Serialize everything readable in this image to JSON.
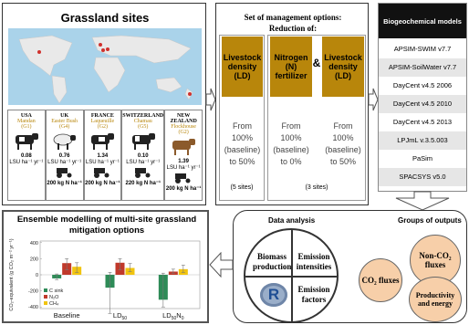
{
  "grassland": {
    "title": "Grassland sites",
    "sites": [
      {
        "country": "USA",
        "site": "Mandan",
        "group": "(G1)",
        "livestock": "0.08",
        "lsu_unit": "LSU ha⁻¹ yr⁻¹",
        "fertilizer": ""
      },
      {
        "country": "UK",
        "site": "Easter Bush",
        "group": "(G4)",
        "livestock": "0.76",
        "lsu_unit": "LSU ha⁻¹ yr⁻¹",
        "fertilizer": "200 kg N ha⁻¹"
      },
      {
        "country": "FRANCE",
        "site": "Laqueuille",
        "group": "(G2)",
        "livestock": "1.34",
        "lsu_unit": "LSU ha⁻¹ yr⁻¹",
        "fertilizer": "200 kg N ha⁻¹"
      },
      {
        "country": "SWITZERLAND",
        "site": "Chamau",
        "group": "(G5)",
        "livestock": "0.10",
        "lsu_unit": "LSU ha⁻¹ yr⁻¹",
        "fertilizer": "220 kg N ha⁻¹"
      },
      {
        "country": "NEW ZEALAND",
        "site": "Flockhouse",
        "group": "(G2)",
        "livestock": "1.39",
        "lsu_unit": "LSU ha⁻¹ yr⁻¹",
        "fertilizer": "200 kg N ha⁻¹"
      }
    ]
  },
  "management": {
    "title": "Set of management options:",
    "subtitle": "Reduction of:",
    "amp": "&",
    "options": [
      {
        "name": "Livestock density (LD)",
        "body": "From 100% (baseline) to 50%"
      },
      {
        "name": "Nitrogen (N) fertilizer",
        "body": "From 100% (baseline) to 0%"
      },
      {
        "name": "Livestock density (LD)",
        "body": "From 100% (baseline) to 50%"
      }
    ],
    "foot_left": "(5 sites)",
    "foot_right": "(3 sites)"
  },
  "models": {
    "title": "Biogeochemical models",
    "items": [
      "APSIM-SWIM v7.7",
      "APSIM-SoilWater v7.7",
      "DayCent v4.5 2006",
      "DayCent v4.5 2010",
      "DayCent v4.5 2013",
      "LPJmL v.3.5.003",
      "PaSim",
      "SPACSYS v5.0"
    ]
  },
  "analysis": {
    "title": "Data analysis",
    "quadrants": [
      "Biomass production",
      "Emission intensities",
      "Emission factors"
    ],
    "r_logo": "R"
  },
  "outputs": {
    "title": "Groups of outputs",
    "items": [
      "Non-CO₂ fluxes",
      "CO₂ fluxes",
      "Productivity and energy"
    ]
  },
  "ensemble": {
    "title": "Ensemble modelling of multi-site grassland mitigation options"
  },
  "colors": {
    "csink": "#2e8b57",
    "n2o": "#c0392b",
    "ch4": "#f1c40f",
    "box_gold": "#b8860b",
    "circle_fill": "#f7cfa9"
  },
  "chart_data": {
    "type": "bar",
    "categories": [
      "Baseline",
      "LD50",
      "LD50N0"
    ],
    "category_labels": [
      {
        "main": "Baseline",
        "sub": ""
      },
      {
        "main": "LD",
        "sub": "50"
      },
      {
        "main": "LD",
        "sub": "50",
        "tail": "N",
        "tail_sub": "0"
      }
    ],
    "ylabel": "CO₂-equivalent (g CO₂ m⁻² yr⁻¹)",
    "yticks": [
      "400",
      "200",
      "0",
      "-200",
      "-400"
    ],
    "ylim": [
      -420,
      420
    ],
    "series": [
      {
        "name": "C sink",
        "color": "#2e8b57",
        "values": [
          -45,
          -160,
          -310
        ],
        "err_low": [
          -60,
          -480,
          -400
        ],
        "err_high": [
          10,
          30,
          20
        ]
      },
      {
        "name": "N₂O",
        "color": "#c0392b",
        "values": [
          145,
          150,
          40
        ],
        "err_low": [
          60,
          60,
          20
        ],
        "err_high": [
          200,
          200,
          70
        ]
      },
      {
        "name": "CH₄",
        "color": "#f1c40f",
        "values": [
          100,
          85,
          70
        ],
        "err_low": [
          30,
          40,
          30
        ],
        "err_high": [
          150,
          140,
          120
        ]
      }
    ],
    "legend_position": "bottom-left"
  }
}
